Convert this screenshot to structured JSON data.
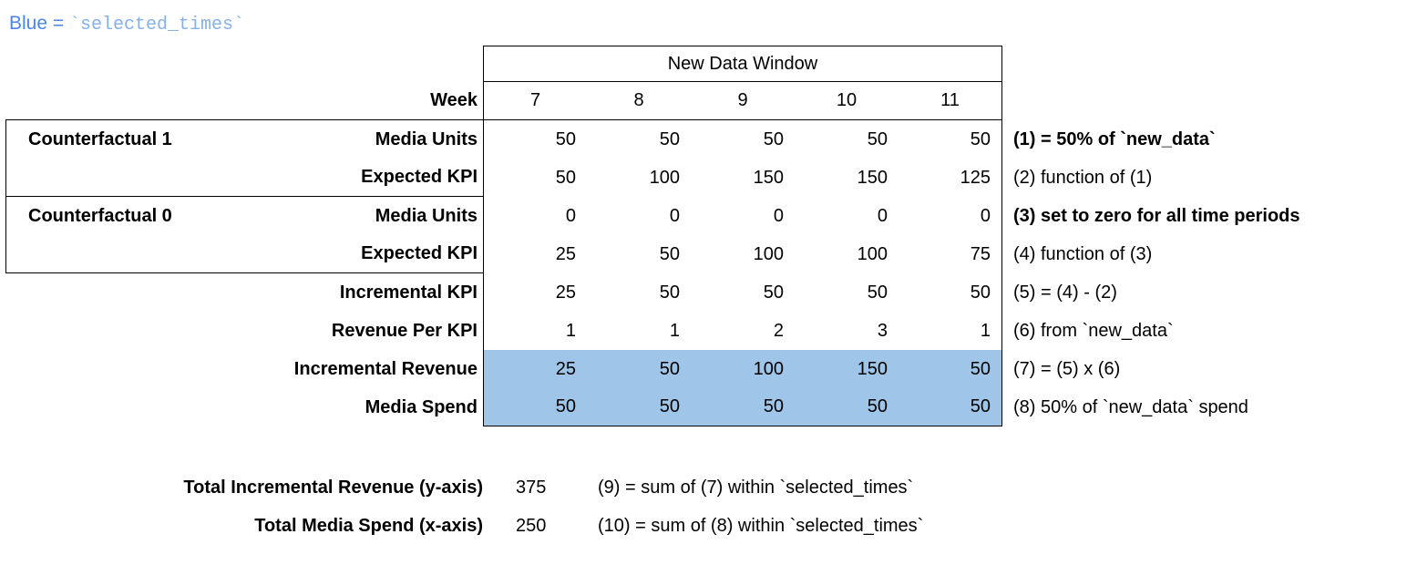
{
  "colors": {
    "highlight": "#9fc5e8",
    "legend_blue": "#4a86e8",
    "legend_code_blue": "#85b1e3"
  },
  "legend": {
    "prefix": "Blue = ",
    "code": "`selected_times`"
  },
  "table": {
    "window_header": "New Data Window",
    "week_label": "Week",
    "weeks": [
      "7",
      "8",
      "9",
      "10",
      "11"
    ],
    "rows": [
      {
        "group": "Counterfactual 1",
        "label": "Media Units",
        "values": [
          "50",
          "50",
          "50",
          "50",
          "50"
        ],
        "note": "(1) = 50% of `new_data`"
      },
      {
        "group": "",
        "label": "Expected KPI",
        "values": [
          "50",
          "100",
          "150",
          "150",
          "125"
        ],
        "note": "(2) function of (1)"
      },
      {
        "group": "Counterfactual 0",
        "label": "Media Units",
        "values": [
          "0",
          "0",
          "0",
          "0",
          "0"
        ],
        "note": "(3) set to zero for all time periods"
      },
      {
        "group": "",
        "label": "Expected KPI",
        "values": [
          "25",
          "50",
          "100",
          "100",
          "75"
        ],
        "note": "(4) function of (3)"
      },
      {
        "group": "",
        "label": "Incremental KPI",
        "values": [
          "25",
          "50",
          "50",
          "50",
          "50"
        ],
        "note": "(5) = (4) - (2)"
      },
      {
        "group": "",
        "label": "Revenue Per KPI",
        "values": [
          "1",
          "1",
          "2",
          "3",
          "1"
        ],
        "note": "(6) from `new_data`"
      },
      {
        "group": "",
        "label": "Incremental Revenue",
        "values": [
          "25",
          "50",
          "100",
          "150",
          "50"
        ],
        "note": "(7) = (5) x (6)"
      },
      {
        "group": "",
        "label": "Media Spend",
        "values": [
          "50",
          "50",
          "50",
          "50",
          "50"
        ],
        "note": "(8) 50% of `new_data` spend"
      }
    ]
  },
  "totals": [
    {
      "label": "Total Incremental Revenue (y-axis)",
      "value": "375",
      "note": "(9) = sum of (7) within `selected_times`"
    },
    {
      "label": "Total Media Spend (x-axis)",
      "value": "250",
      "note": "(10) = sum of (8) within `selected_times`"
    }
  ],
  "chart_data": {
    "type": "table",
    "title": "New Data Window",
    "x_label": "Week",
    "categories": [
      7,
      8,
      9,
      10,
      11
    ],
    "series": [
      {
        "name": "Counterfactual 1 Media Units",
        "values": [
          50,
          50,
          50,
          50,
          50
        ]
      },
      {
        "name": "Counterfactual 1 Expected KPI",
        "values": [
          50,
          100,
          150,
          150,
          125
        ]
      },
      {
        "name": "Counterfactual 0 Media Units",
        "values": [
          0,
          0,
          0,
          0,
          0
        ]
      },
      {
        "name": "Counterfactual 0 Expected KPI",
        "values": [
          25,
          50,
          100,
          100,
          75
        ]
      },
      {
        "name": "Incremental KPI",
        "values": [
          25,
          50,
          50,
          50,
          50
        ]
      },
      {
        "name": "Revenue Per KPI",
        "values": [
          1,
          1,
          2,
          3,
          1
        ]
      },
      {
        "name": "Incremental Revenue",
        "values": [
          25,
          50,
          100,
          150,
          50
        ]
      },
      {
        "name": "Media Spend",
        "values": [
          50,
          50,
          50,
          50,
          50
        ]
      }
    ],
    "annotations": [
      "(1) = 50% of `new_data`",
      "(2) function of (1)",
      "(3) set to zero for all time periods",
      "(4) function of (3)",
      "(5) = (4) - (2)",
      "(6) from `new_data`",
      "(7) = (5) x (6)",
      "(8) 50% of `new_data` spend",
      "(9) = sum of (7) within `selected_times`",
      "(10) = sum of (8) within `selected_times`"
    ],
    "highlighted_rows": [
      "Incremental Revenue",
      "Media Spend"
    ],
    "totals": {
      "total_incremental_revenue": 375,
      "total_media_spend": 250
    },
    "legend": "Blue = `selected_times`"
  }
}
